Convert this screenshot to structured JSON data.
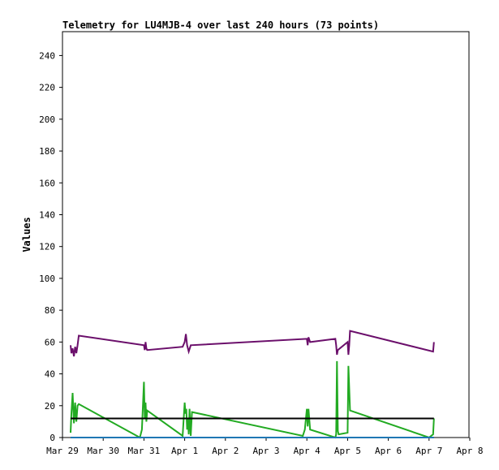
{
  "chart_data": {
    "type": "line",
    "title": "Telemetry for LU4MJB-4 over last 240 hours (73 points)",
    "xlabel": "",
    "ylabel": "Values",
    "xlim": [
      "Mar 29",
      "Apr 8"
    ],
    "ylim": [
      0,
      255
    ],
    "y_ticks": [
      0,
      20,
      40,
      60,
      80,
      100,
      120,
      140,
      160,
      180,
      200,
      220,
      240
    ],
    "x_ticks": [
      "Mar 29",
      "Mar 30",
      "Mar 31",
      "Apr 1",
      "Apr 2",
      "Apr 3",
      "Apr 4",
      "Apr 5",
      "Apr 6",
      "Apr 7",
      "Apr 8"
    ],
    "x_units": "days since Mar 29 00:00",
    "grid": false,
    "series": [
      {
        "color": "#6b0f6b",
        "x": [
          0.2,
          0.22,
          0.25,
          0.28,
          0.31,
          0.34,
          0.37,
          0.4,
          2.0,
          2.02,
          2.04,
          2.06,
          2.08,
          2.95,
          3.0,
          3.03,
          3.06,
          3.1,
          3.15,
          6.0,
          6.02,
          6.04,
          6.08,
          6.7,
          6.72,
          6.74,
          6.76,
          7.0,
          7.02,
          7.04,
          7.06,
          9.1,
          9.12
        ],
        "y": [
          58,
          53,
          56,
          51,
          57,
          53,
          58,
          64,
          58,
          55,
          60,
          56,
          55,
          57,
          60,
          65,
          58,
          54,
          58,
          62,
          58,
          63,
          60,
          62,
          58,
          52,
          55,
          60,
          52,
          58,
          67,
          54,
          60
        ]
      },
      {
        "color": "#22aa22",
        "x": [
          0.2,
          0.22,
          0.25,
          0.28,
          0.31,
          0.34,
          0.37,
          0.4,
          1.9,
          1.95,
          2.0,
          2.02,
          2.04,
          2.06,
          2.08,
          2.95,
          3.0,
          3.02,
          3.04,
          3.06,
          3.08,
          3.1,
          3.12,
          3.15,
          3.18,
          5.9,
          5.95,
          6.0,
          6.02,
          6.04,
          6.08,
          6.7,
          6.72,
          6.74,
          6.76,
          6.78,
          7.0,
          7.02,
          7.04,
          7.06,
          9.0,
          9.1,
          9.12
        ],
        "y": [
          3,
          15,
          28,
          9,
          22,
          10,
          20,
          21,
          0,
          5,
          35,
          12,
          22,
          10,
          17,
          1,
          22,
          15,
          18,
          5,
          12,
          2,
          18,
          1,
          16,
          1,
          5,
          18,
          7,
          18,
          5,
          0,
          2,
          48,
          4,
          2,
          3,
          45,
          31,
          17,
          0,
          2,
          12
        ]
      },
      {
        "color": "#000000",
        "x": [
          0.2,
          9.12
        ],
        "y": [
          12,
          12
        ]
      },
      {
        "color": "#1f77b4",
        "x": [
          0.2,
          9.12
        ],
        "y": [
          0,
          0
        ]
      }
    ]
  }
}
